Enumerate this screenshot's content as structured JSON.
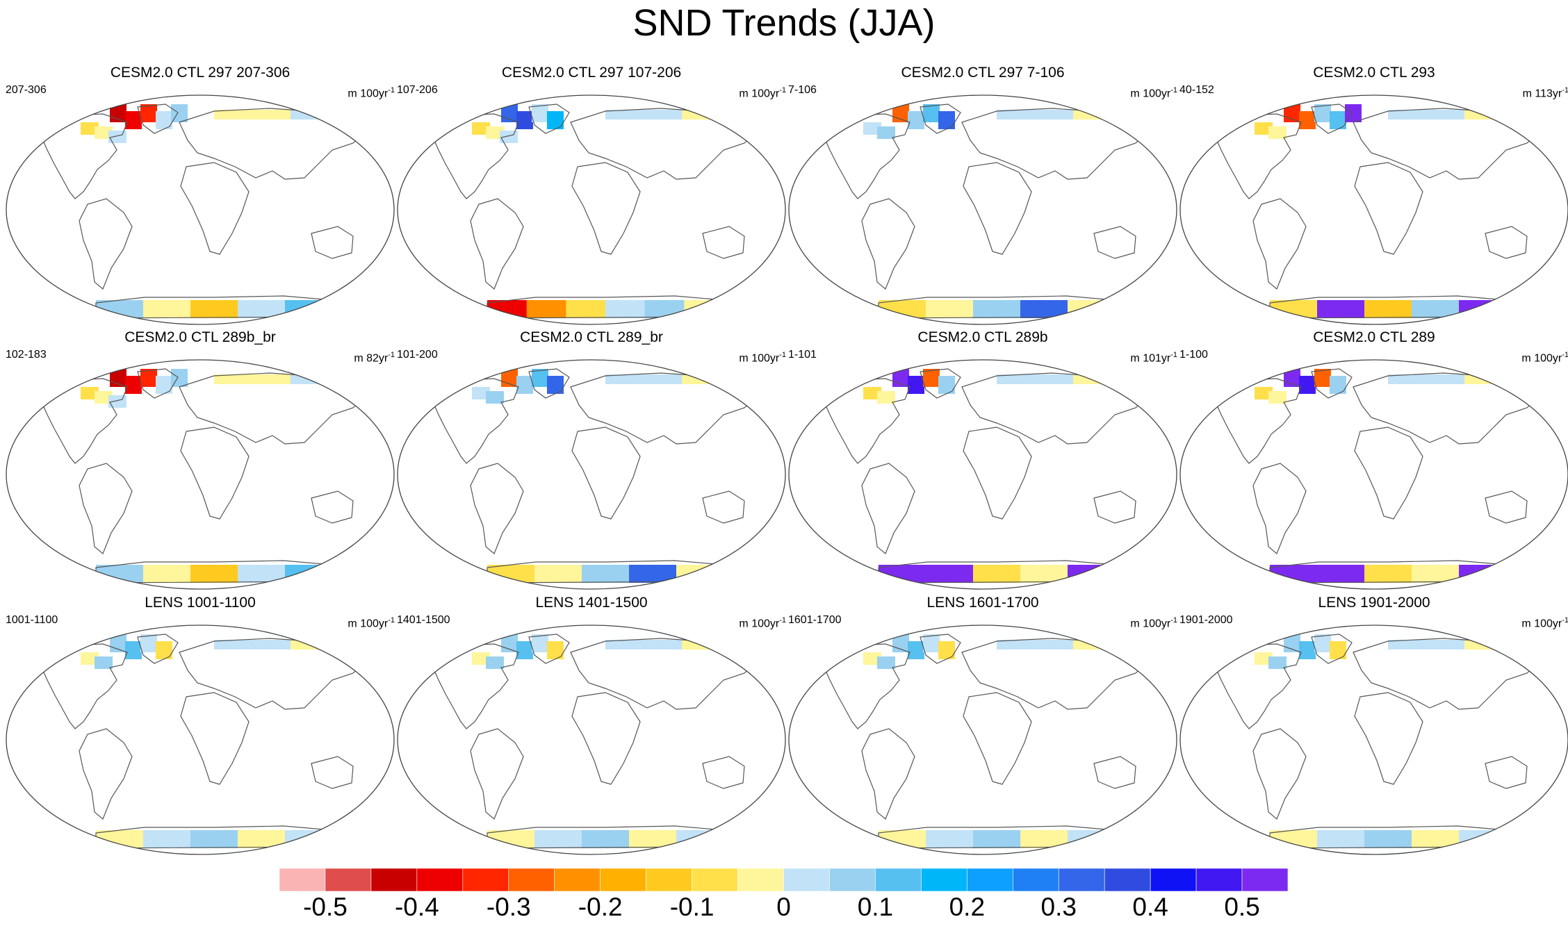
{
  "title": "SND Trends (JJA)",
  "panels": [
    {
      "title": "CESM2.0 CTL 297 207-306",
      "period": "207-306",
      "units_prefix": "m 100yr",
      "units_exp": "-1",
      "pattern": "mixed_neg"
    },
    {
      "title": "CESM2.0 CTL 297 107-206",
      "period": "107-206",
      "units_prefix": "m 100yr",
      "units_exp": "-1",
      "pattern": "mixed_negstrong"
    },
    {
      "title": "CESM2.0 CTL 297 7-106",
      "period": "7-106",
      "units_prefix": "m 100yr",
      "units_exp": "-1",
      "pattern": "mixed_pos"
    },
    {
      "title": "CESM2.0 CTL 293",
      "period": "40-152",
      "units_prefix": "m 113yr",
      "units_exp": "-1",
      "pattern": "purple_neg"
    },
    {
      "title": "CESM2.0 CTL 289b_br",
      "period": "102-183",
      "units_prefix": "m 82yr",
      "units_exp": "-1",
      "pattern": "mixed_neg"
    },
    {
      "title": "CESM2.0 CTL 289_br",
      "period": "101-200",
      "units_prefix": "m 100yr",
      "units_exp": "-1",
      "pattern": "mixed_pos"
    },
    {
      "title": "CESM2.0 CTL 289b",
      "period": "1-101",
      "units_prefix": "m 101yr",
      "units_exp": "-1",
      "pattern": "purple"
    },
    {
      "title": "CESM2.0 CTL 289",
      "period": "1-100",
      "units_prefix": "m 100yr",
      "units_exp": "-1",
      "pattern": "purple"
    },
    {
      "title": "LENS 1001-1100",
      "period": "1001-1100",
      "units_prefix": "m 100yr",
      "units_exp": "-1",
      "pattern": "weak"
    },
    {
      "title": "LENS 1401-1500",
      "period": "1401-1500",
      "units_prefix": "m 100yr",
      "units_exp": "-1",
      "pattern": "weak"
    },
    {
      "title": "LENS 1601-1700",
      "period": "1601-1700",
      "units_prefix": "m 100yr",
      "units_exp": "-1",
      "pattern": "weak"
    },
    {
      "title": "LENS 1901-2000",
      "period": "1901-2000",
      "units_prefix": "m 100yr",
      "units_exp": "-1",
      "pattern": "weak"
    }
  ],
  "colorbar": {
    "levels": [
      -0.55,
      -0.5,
      -0.45,
      -0.4,
      -0.35,
      -0.3,
      -0.25,
      -0.2,
      -0.15,
      -0.1,
      -0.05,
      0,
      0.05,
      0.1,
      0.15,
      0.2,
      0.25,
      0.3,
      0.35,
      0.4,
      0.45,
      0.5,
      0.55
    ],
    "colors": [
      "#fbb4b4",
      "#df4d4d",
      "#c80000",
      "#ee0000",
      "#ff2600",
      "#ff6100",
      "#ff9000",
      "#ffb000",
      "#ffca20",
      "#ffe04a",
      "#fff59a",
      "#c2e2f7",
      "#9ad1f0",
      "#56c0f0",
      "#00b6f8",
      "#0ea0ff",
      "#1f80f5",
      "#3366e8",
      "#304ce0",
      "#0f12f5",
      "#4118f2",
      "#7d2af0"
    ],
    "tick_labels": [
      "-0.5",
      "-0.4",
      "-0.3",
      "-0.2",
      "-0.1",
      "0",
      "0.1",
      "0.2",
      "0.3",
      "0.4",
      "0.5"
    ],
    "tick_values": [
      -0.5,
      -0.4,
      -0.3,
      -0.2,
      -0.1,
      0,
      0.1,
      0.2,
      0.3,
      0.4,
      0.5
    ]
  }
}
